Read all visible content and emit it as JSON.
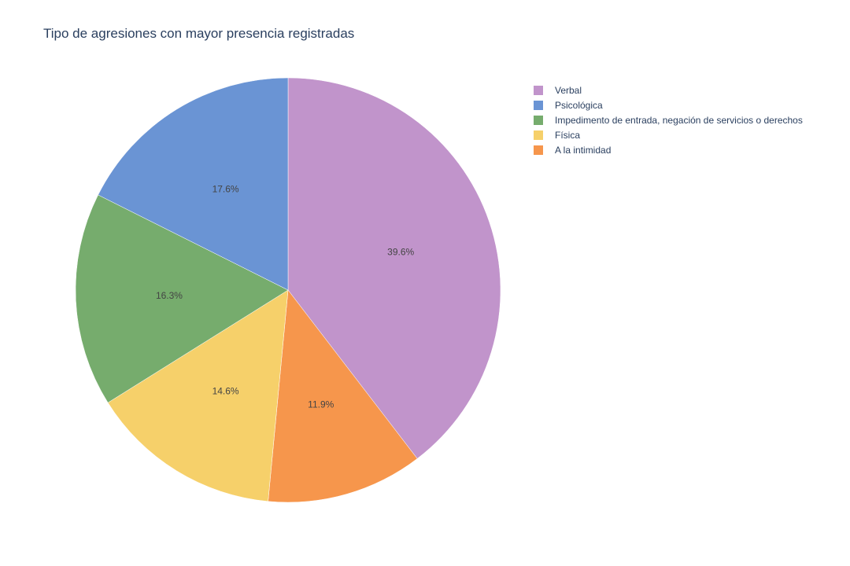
{
  "chart_data": {
    "type": "pie",
    "title": "Tipo de agresiones con mayor presencia registradas",
    "categories": [
      "Verbal",
      "Psicológica",
      "Impedimento de entrada, negación de servicios o derechos",
      "Física",
      "A la intimidad"
    ],
    "values": [
      39.6,
      17.6,
      16.3,
      14.6,
      11.9
    ],
    "value_labels": [
      "39.6%",
      "17.6%",
      "16.3%",
      "14.6%",
      "11.9%"
    ],
    "colors": [
      "#c194cb",
      "#6a94d4",
      "#76ac6d",
      "#f6d06a",
      "#f6964c"
    ],
    "slice_order": [
      "Verbal",
      "A la intimidad",
      "Física",
      "Impedimento de entrada, negación de servicios o derechos",
      "Psicológica"
    ],
    "direction": "clockwise",
    "legend_position": "top-right"
  }
}
